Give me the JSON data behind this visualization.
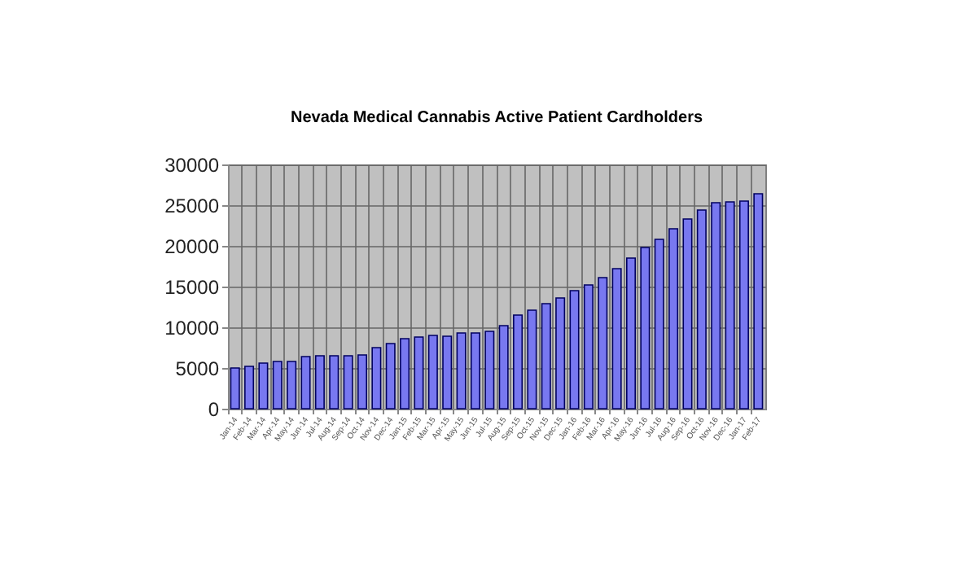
{
  "chart_data": {
    "type": "bar",
    "title": "Nevada Medical Cannabis Active Patient Cardholders",
    "categories": [
      "Jan-14",
      "Feb-14",
      "Mar-14",
      "Apr-14",
      "May-14",
      "Jun-14",
      "Jul-14",
      "Aug-14",
      "Sep-14",
      "Oct-14",
      "Nov-14",
      "Dec-14",
      "Jan-15",
      "Feb-15",
      "Mar-15",
      "Apr-15",
      "May-15",
      "Jun-15",
      "Jul-15",
      "Aug-15",
      "Sep-15",
      "Oct-15",
      "Nov-15",
      "Dec-15",
      "Jan-16",
      "Feb-16",
      "Mar-16",
      "Apr-16",
      "May-16",
      "Jun-16",
      "Jul-16",
      "Aug-16",
      "Sep-16",
      "Oct-16",
      "Nov-16",
      "Dec-16",
      "Jan-17",
      "Feb-17"
    ],
    "values": [
      5000,
      5200,
      5600,
      5800,
      5800,
      6400,
      6500,
      6500,
      6500,
      6600,
      7500,
      8000,
      8600,
      8800,
      9000,
      8900,
      9300,
      9300,
      9500,
      10200,
      11500,
      12100,
      12900,
      13600,
      14500,
      15200,
      16100,
      17200,
      18500,
      19800,
      20800,
      22100,
      23300,
      24400,
      25300,
      25400,
      25500,
      26400
    ],
    "color": "#7878f0",
    "ylim": [
      0,
      30000
    ],
    "yticks": [
      0,
      5000,
      10000,
      15000,
      20000,
      25000,
      30000
    ],
    "grid": true
  }
}
